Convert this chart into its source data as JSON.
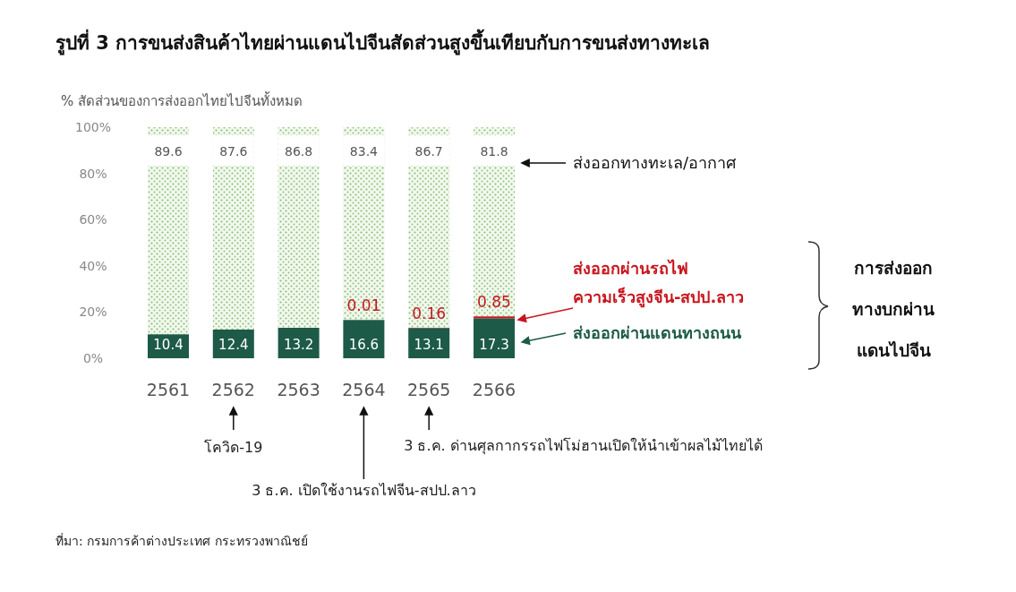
{
  "chart_data": {
    "type": "bar",
    "stacked": true,
    "title": "รูปที่ 3 การขนส่งสินค้าไทยผ่านแดนไปจีนสัดส่วนสูงขึ้นเทียบกับการขนส่งทางทะเล",
    "ylabel": "% สัดส่วนของการส่งออกไทยไปจีนทั้งหมด",
    "categories": [
      "2561",
      "2562",
      "2563",
      "2564",
      "2565",
      "2566"
    ],
    "series": [
      {
        "name": "ส่งออกผ่านแดนทางถนน",
        "color": "#1d5a48",
        "values": [
          10.4,
          12.4,
          13.2,
          16.6,
          13.1,
          17.3
        ]
      },
      {
        "name": "ส่งออกผ่านรถไฟ ความเร็วสูงจีน-สปป.ลาว",
        "color": "#c8161e",
        "values": [
          null,
          null,
          null,
          0.01,
          0.16,
          0.85
        ]
      },
      {
        "name": "ส่งออกทางทะเล/อากาศ",
        "color": "#8cc07a",
        "values": [
          89.6,
          87.6,
          86.8,
          83.4,
          86.7,
          81.8
        ]
      }
    ],
    "ylim": [
      0,
      100
    ],
    "yticks": [
      {
        "value": 0,
        "label": "0%"
      },
      {
        "value": 20,
        "label": "20%"
      },
      {
        "value": 40,
        "label": "40%"
      },
      {
        "value": 60,
        "label": "60%"
      },
      {
        "value": 80,
        "label": "80%"
      },
      {
        "value": 100,
        "label": "100%"
      }
    ],
    "grid": false,
    "legend": "right",
    "data_labels": true,
    "annotations": [
      "การส่งออก ทางบกผ่าน แดนไปจีน",
      "ที่มา: กรมการค้าต่างประเทศ กระทรวงพาณิชย์",
      "โควิด-19",
      "3 ธ.ค. เปิดใช้งานรถไฟจีน-สปป.ลาว",
      "3 ธ.ค. ด่านศุลกากรรถไฟโม่ฮานเปิดให้นำเข้าผลไม้ไทยได้"
    ]
  }
}
